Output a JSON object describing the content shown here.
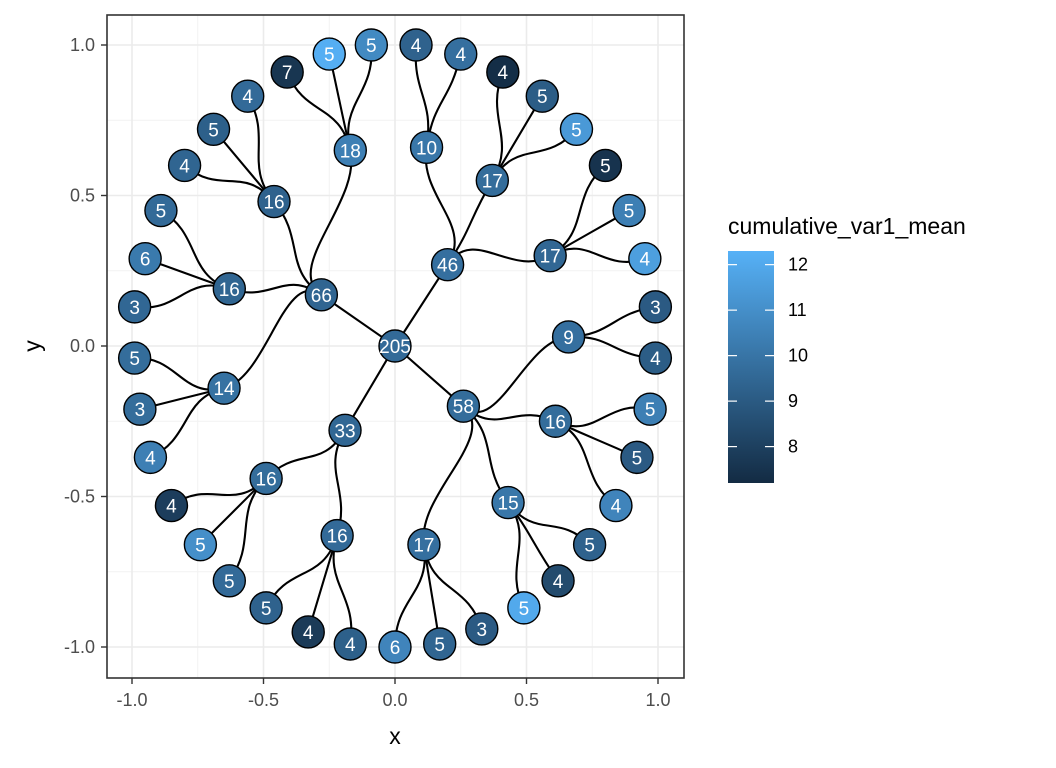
{
  "chart_data": {
    "type": "tree",
    "xlabel": "x",
    "ylabel": "y",
    "xlim": [
      -1.1,
      1.1
    ],
    "ylim": [
      -1.1,
      1.1
    ],
    "x_ticks": [
      -1.0,
      -0.5,
      0.0,
      0.5,
      1.0
    ],
    "x_tick_labels": [
      "-1.0",
      "-0.5",
      "0.0",
      "0.5",
      "1.0"
    ],
    "y_ticks": [
      1.0,
      0.5,
      0.0,
      -0.5,
      -1.0
    ],
    "y_tick_labels": [
      "1.0",
      "0.5",
      "0.0",
      "-0.5",
      "-1.0"
    ],
    "grid": true,
    "legend": {
      "title": "cumulative_var1_mean",
      "position": "right",
      "range": [
        7.2,
        12.3
      ],
      "ticks": [
        12,
        11,
        10,
        9,
        8
      ],
      "tick_labels": [
        "12",
        "11",
        "10",
        "9",
        "8"
      ],
      "color_low": "#132b43",
      "color_high": "#56b1f7"
    },
    "nodes": [
      {
        "id": "n205",
        "label": "205",
        "x": 0.0,
        "y": 0.0,
        "value": 9.6
      },
      {
        "id": "n66",
        "label": "66",
        "x": -0.28,
        "y": 0.17,
        "value": 9.4
      },
      {
        "id": "n46",
        "label": "46",
        "x": 0.2,
        "y": 0.27,
        "value": 9.8
      },
      {
        "id": "n58",
        "label": "58",
        "x": 0.26,
        "y": -0.2,
        "value": 9.7
      },
      {
        "id": "n33",
        "label": "33",
        "x": -0.19,
        "y": -0.28,
        "value": 9.5
      },
      {
        "id": "n18",
        "label": "18",
        "x": -0.17,
        "y": 0.65,
        "value": 10.4
      },
      {
        "id": "n16a",
        "label": "16",
        "x": -0.46,
        "y": 0.48,
        "value": 9.3
      },
      {
        "id": "n16b",
        "label": "16",
        "x": -0.63,
        "y": 0.19,
        "value": 9.4
      },
      {
        "id": "n14",
        "label": "14",
        "x": -0.65,
        "y": -0.14,
        "value": 9.9
      },
      {
        "id": "n10",
        "label": "10",
        "x": 0.12,
        "y": 0.66,
        "value": 10.1
      },
      {
        "id": "n17a",
        "label": "17",
        "x": 0.37,
        "y": 0.55,
        "value": 9.7
      },
      {
        "id": "n17b",
        "label": "17",
        "x": 0.59,
        "y": 0.3,
        "value": 9.5
      },
      {
        "id": "n9",
        "label": "9",
        "x": 0.66,
        "y": 0.03,
        "value": 9.8
      },
      {
        "id": "n16c",
        "label": "16",
        "x": 0.61,
        "y": -0.25,
        "value": 9.7
      },
      {
        "id": "n15",
        "label": "15",
        "x": 0.43,
        "y": -0.52,
        "value": 10.1
      },
      {
        "id": "n17c",
        "label": "17",
        "x": 0.11,
        "y": -0.66,
        "value": 9.8
      },
      {
        "id": "n16d",
        "label": "16",
        "x": -0.22,
        "y": -0.63,
        "value": 9.6
      },
      {
        "id": "n16e",
        "label": "16",
        "x": -0.49,
        "y": -0.44,
        "value": 9.7
      },
      {
        "id": "l1",
        "label": "7",
        "x": -0.41,
        "y": 0.91,
        "value": 7.6
      },
      {
        "id": "l2",
        "label": "5",
        "x": -0.25,
        "y": 0.97,
        "value": 12.2
      },
      {
        "id": "l3",
        "label": "5",
        "x": -0.09,
        "y": 1.0,
        "value": 10.8
      },
      {
        "id": "l4",
        "label": "4",
        "x": 0.08,
        "y": 1.0,
        "value": 9.3
      },
      {
        "id": "l5",
        "label": "4",
        "x": 0.25,
        "y": 0.97,
        "value": 9.8
      },
      {
        "id": "l6",
        "label": "4",
        "x": 0.41,
        "y": 0.91,
        "value": 7.3
      },
      {
        "id": "l7",
        "label": "5",
        "x": 0.56,
        "y": 0.83,
        "value": 9.1
      },
      {
        "id": "l8",
        "label": "5",
        "x": 0.69,
        "y": 0.72,
        "value": 11.4
      },
      {
        "id": "l9",
        "label": "5",
        "x": 0.8,
        "y": 0.6,
        "value": 7.5
      },
      {
        "id": "l10",
        "label": "5",
        "x": 0.89,
        "y": 0.45,
        "value": 10.4
      },
      {
        "id": "l11",
        "label": "4",
        "x": 0.95,
        "y": 0.29,
        "value": 11.6
      },
      {
        "id": "l12",
        "label": "3",
        "x": 0.99,
        "y": 0.13,
        "value": 9.0
      },
      {
        "id": "l13",
        "label": "4",
        "x": 0.99,
        "y": -0.04,
        "value": 9.1
      },
      {
        "id": "l14",
        "label": "5",
        "x": 0.97,
        "y": -0.21,
        "value": 10.4
      },
      {
        "id": "l15",
        "label": "5",
        "x": 0.92,
        "y": -0.37,
        "value": 9.0
      },
      {
        "id": "l16",
        "label": "4",
        "x": 0.84,
        "y": -0.53,
        "value": 10.6
      },
      {
        "id": "l17",
        "label": "5",
        "x": 0.74,
        "y": -0.66,
        "value": 9.3
      },
      {
        "id": "l18",
        "label": "4",
        "x": 0.62,
        "y": -0.78,
        "value": 8.4
      },
      {
        "id": "l19",
        "label": "5",
        "x": 0.49,
        "y": -0.87,
        "value": 12.0
      },
      {
        "id": "l20",
        "label": "3",
        "x": 0.33,
        "y": -0.94,
        "value": 9.0
      },
      {
        "id": "l21",
        "label": "5",
        "x": 0.17,
        "y": -0.99,
        "value": 9.4
      },
      {
        "id": "l22",
        "label": "6",
        "x": 0.0,
        "y": -1.0,
        "value": 10.6
      },
      {
        "id": "l23",
        "label": "4",
        "x": -0.17,
        "y": -0.99,
        "value": 9.2
      },
      {
        "id": "l24",
        "label": "4",
        "x": -0.33,
        "y": -0.95,
        "value": 7.8
      },
      {
        "id": "l25",
        "label": "5",
        "x": -0.49,
        "y": -0.87,
        "value": 9.3
      },
      {
        "id": "l26",
        "label": "5",
        "x": -0.63,
        "y": -0.78,
        "value": 9.6
      },
      {
        "id": "l27",
        "label": "5",
        "x": -0.74,
        "y": -0.66,
        "value": 11.0
      },
      {
        "id": "l28",
        "label": "4",
        "x": -0.85,
        "y": -0.53,
        "value": 7.9
      },
      {
        "id": "l29",
        "label": "4",
        "x": -0.93,
        "y": -0.37,
        "value": 10.4
      },
      {
        "id": "l30",
        "label": "3",
        "x": -0.97,
        "y": -0.21,
        "value": 9.7
      },
      {
        "id": "l31",
        "label": "5",
        "x": -0.99,
        "y": -0.04,
        "value": 9.7
      },
      {
        "id": "l32",
        "label": "3",
        "x": -0.99,
        "y": 0.13,
        "value": 9.5
      },
      {
        "id": "l33",
        "label": "6",
        "x": -0.95,
        "y": 0.29,
        "value": 10.2
      },
      {
        "id": "l34",
        "label": "5",
        "x": -0.89,
        "y": 0.45,
        "value": 9.6
      },
      {
        "id": "l35",
        "label": "4",
        "x": -0.8,
        "y": 0.6,
        "value": 9.4
      },
      {
        "id": "l36",
        "label": "5",
        "x": -0.69,
        "y": 0.72,
        "value": 9.2
      },
      {
        "id": "l37",
        "label": "4",
        "x": -0.56,
        "y": 0.83,
        "value": 9.6
      }
    ],
    "edges": [
      [
        "n205",
        "n66"
      ],
      [
        "n205",
        "n46"
      ],
      [
        "n205",
        "n58"
      ],
      [
        "n205",
        "n33"
      ],
      [
        "n66",
        "n18"
      ],
      [
        "n66",
        "n16a"
      ],
      [
        "n66",
        "n16b"
      ],
      [
        "n66",
        "n14"
      ],
      [
        "n46",
        "n10"
      ],
      [
        "n46",
        "n17a"
      ],
      [
        "n46",
        "n17b"
      ],
      [
        "n58",
        "n9"
      ],
      [
        "n58",
        "n16c"
      ],
      [
        "n58",
        "n15"
      ],
      [
        "n58",
        "n17c"
      ],
      [
        "n33",
        "n16d"
      ],
      [
        "n33",
        "n16e"
      ],
      [
        "n18",
        "l1"
      ],
      [
        "n18",
        "l2"
      ],
      [
        "n18",
        "l3"
      ],
      [
        "n10",
        "l4"
      ],
      [
        "n10",
        "l5"
      ],
      [
        "n17a",
        "l6"
      ],
      [
        "n17a",
        "l7"
      ],
      [
        "n17a",
        "l8"
      ],
      [
        "n17b",
        "l9"
      ],
      [
        "n17b",
        "l10"
      ],
      [
        "n17b",
        "l11"
      ],
      [
        "n9",
        "l12"
      ],
      [
        "n9",
        "l13"
      ],
      [
        "n16c",
        "l14"
      ],
      [
        "n16c",
        "l15"
      ],
      [
        "n16c",
        "l16"
      ],
      [
        "n15",
        "l17"
      ],
      [
        "n15",
        "l18"
      ],
      [
        "n15",
        "l19"
      ],
      [
        "n17c",
        "l20"
      ],
      [
        "n17c",
        "l21"
      ],
      [
        "n17c",
        "l22"
      ],
      [
        "n16d",
        "l23"
      ],
      [
        "n16d",
        "l24"
      ],
      [
        "n16d",
        "l25"
      ],
      [
        "n16e",
        "l26"
      ],
      [
        "n16e",
        "l27"
      ],
      [
        "n16e",
        "l28"
      ],
      [
        "n14",
        "l29"
      ],
      [
        "n14",
        "l30"
      ],
      [
        "n14",
        "l31"
      ],
      [
        "n16b",
        "l32"
      ],
      [
        "n16b",
        "l33"
      ],
      [
        "n16b",
        "l34"
      ],
      [
        "n16a",
        "l35"
      ],
      [
        "n16a",
        "l36"
      ],
      [
        "n16a",
        "l37"
      ]
    ]
  }
}
